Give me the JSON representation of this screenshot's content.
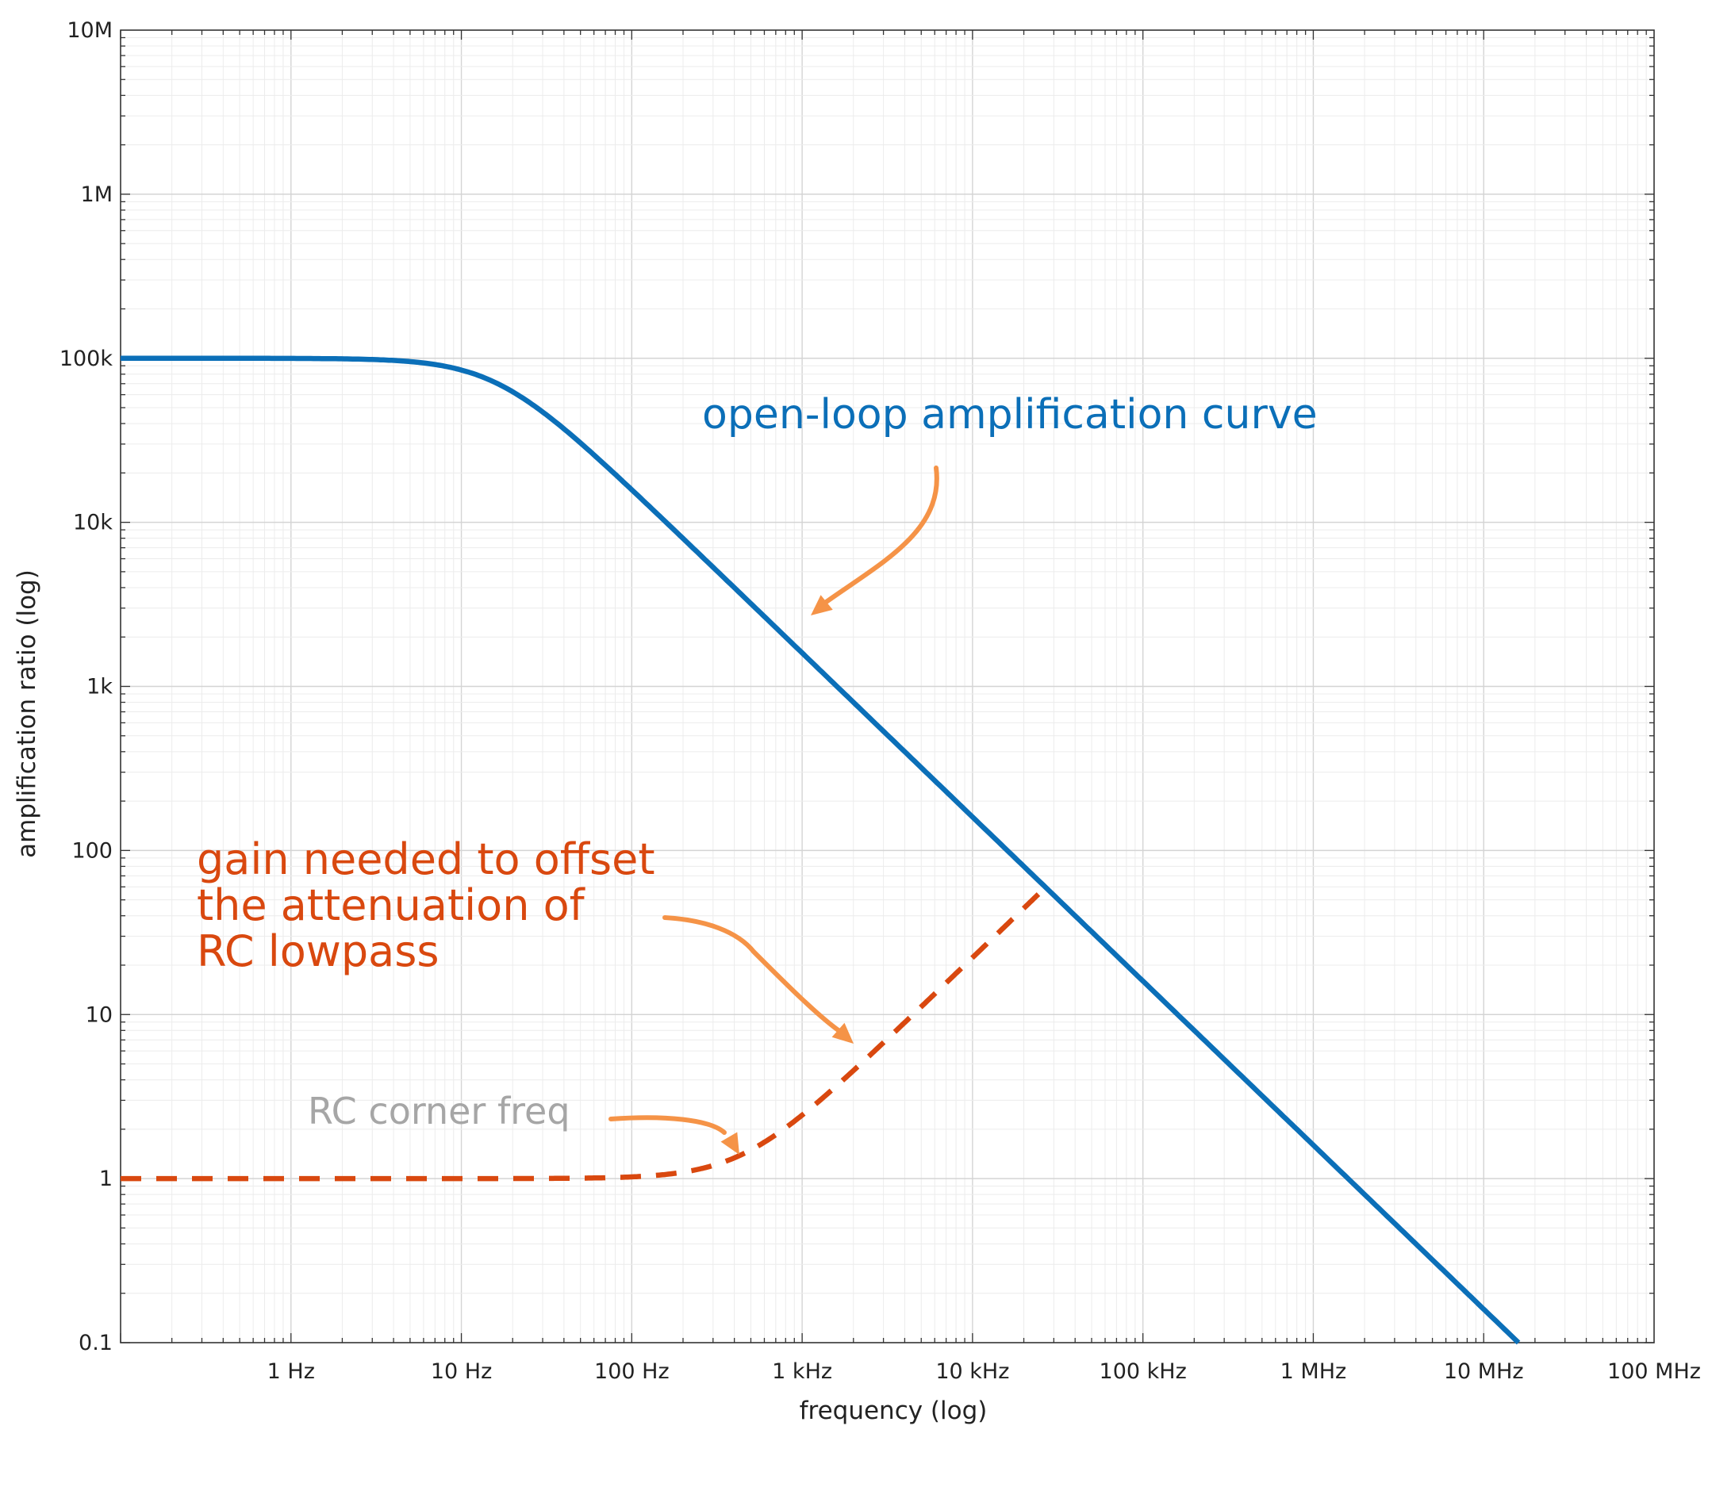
{
  "chart_data": {
    "type": "line",
    "x_scale": "log",
    "y_scale": "log",
    "xlabel": "frequency (log)",
    "ylabel": "amplification ratio (log)",
    "xlim": [
      0.1,
      100000000
    ],
    "ylim": [
      0.1,
      10000000
    ],
    "grid": true,
    "x_ticks": [
      {
        "value": 1,
        "label": "1 Hz"
      },
      {
        "value": 10,
        "label": "10 Hz"
      },
      {
        "value": 100,
        "label": "100 Hz"
      },
      {
        "value": 1000,
        "label": "1 kHz"
      },
      {
        "value": 10000,
        "label": "10 kHz"
      },
      {
        "value": 100000,
        "label": "100 kHz"
      },
      {
        "value": 1000000,
        "label": "1 MHz"
      },
      {
        "value": 10000000,
        "label": "10 MHz"
      },
      {
        "value": 100000000,
        "label": "100 MHz"
      }
    ],
    "y_ticks": [
      {
        "value": 0.1,
        "label": "0.1"
      },
      {
        "value": 1,
        "label": "1"
      },
      {
        "value": 10,
        "label": "10"
      },
      {
        "value": 100,
        "label": "100"
      },
      {
        "value": 1000,
        "label": "1k"
      },
      {
        "value": 10000,
        "label": "10k"
      },
      {
        "value": 100000,
        "label": "100k"
      },
      {
        "value": 1000000,
        "label": "1M"
      },
      {
        "value": 10000000,
        "label": "10M"
      }
    ],
    "series": [
      {
        "key": "open-loop",
        "color": "#0b6fb8",
        "style": "solid",
        "model": "single-pole",
        "dc_gain": 100000,
        "corner_hz": 16,
        "x_range": [
          0.1,
          16000000
        ]
      },
      {
        "key": "rc-offset",
        "color": "#d9480f",
        "style": "dashed",
        "model": "inverse-rc-lowpass",
        "dc_gain": 1,
        "corner_hz": 450,
        "x_range": [
          0.1,
          28000
        ]
      }
    ],
    "annotations": [
      {
        "key": "open-loop-label",
        "text": "open-loop amplification curve",
        "color": "#0b6fb8"
      },
      {
        "key": "gain-label",
        "lines": [
          "gain needed to offset",
          "the attenuation of",
          "RC lowpass"
        ],
        "color": "#d9480f"
      },
      {
        "key": "corner-label",
        "text": "RC corner freq",
        "color": "#a6a6a6"
      }
    ],
    "arrow_color": "#f59347"
  }
}
